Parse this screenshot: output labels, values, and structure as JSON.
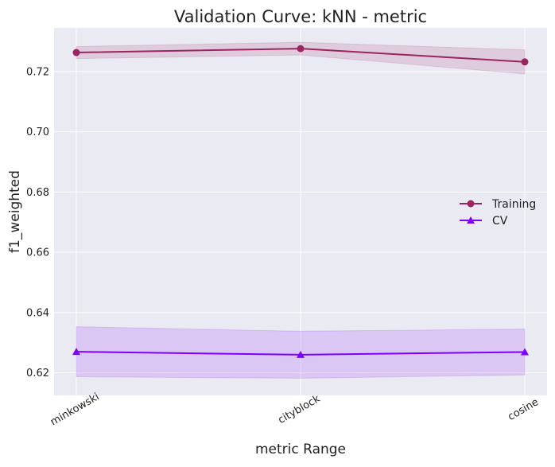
{
  "chart_data": {
    "type": "line",
    "title": "Validation Curve: kNN - metric",
    "xlabel": "metric Range",
    "ylabel": "f1_weighted",
    "categories": [
      "minkowski",
      "cityblock",
      "cosine"
    ],
    "ylim": [
      0.6125,
      0.7345
    ],
    "yticks": [
      "0.62",
      "0.64",
      "0.66",
      "0.68",
      "0.70",
      "0.72"
    ],
    "grid": true,
    "legend_position": "center-right",
    "series": [
      {
        "name": "Training",
        "values": [
          0.7263,
          0.7276,
          0.7232
        ],
        "band_upper": [
          0.7283,
          0.7297,
          0.7272
        ],
        "band_lower": [
          0.7243,
          0.7255,
          0.7192
        ],
        "color": "#9c2462",
        "marker": "circle"
      },
      {
        "name": "CV",
        "values": [
          0.627,
          0.626,
          0.6269
        ],
        "band_upper": [
          0.6353,
          0.6338,
          0.6345
        ],
        "band_lower": [
          0.6187,
          0.6182,
          0.6193
        ],
        "color": "#7f00ff",
        "marker": "triangle"
      }
    ],
    "background_color": "#eaeaf2",
    "grid_color": "#ffffff"
  }
}
